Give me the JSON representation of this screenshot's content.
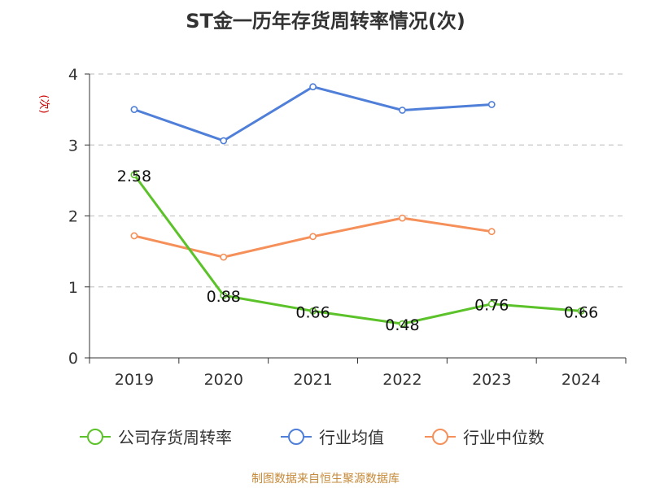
{
  "title": "ST金一历年存货周转率情况(次)",
  "source": "制图数据来自恒生聚源数据库",
  "chart_data": {
    "type": "line",
    "title": "ST金一历年存货周转率情况(次)",
    "ylabel": "(次)",
    "xlabel": "",
    "categories": [
      "2019",
      "2020",
      "2021",
      "2022",
      "2023",
      "2024"
    ],
    "ylim": [
      0,
      4
    ],
    "yticks": [
      0,
      1,
      2,
      3,
      4
    ],
    "grid": true,
    "legend_position": "bottom",
    "series": [
      {
        "name": "公司存货周转率",
        "color": "#5cc22a",
        "values": [
          2.58,
          0.88,
          0.66,
          0.48,
          0.76,
          0.66
        ],
        "labels": [
          "2.58",
          "0.88",
          "0.66",
          "0.48",
          "0.76",
          "0.66"
        ]
      },
      {
        "name": "行业均值",
        "color": "#4f7fd8",
        "values": [
          3.5,
          3.06,
          3.82,
          3.49,
          3.57,
          null
        ]
      },
      {
        "name": "行业中位数",
        "color": "#f5905a",
        "values": [
          1.72,
          1.42,
          1.71,
          1.97,
          1.78,
          null
        ]
      }
    ]
  }
}
